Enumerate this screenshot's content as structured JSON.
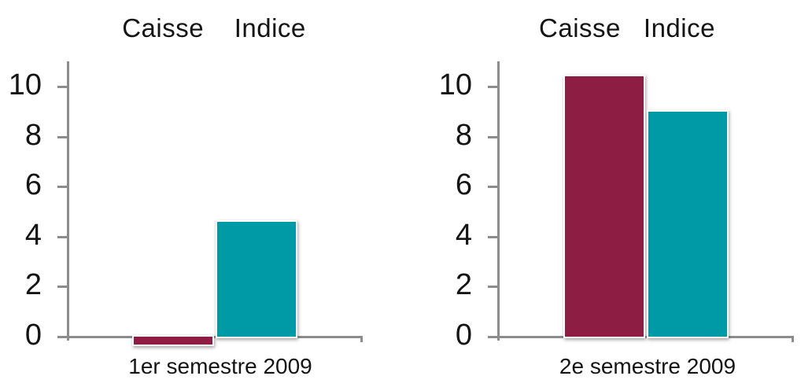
{
  "chart_data": [
    {
      "type": "bar",
      "title": "Caisse    Indice",
      "categories": [
        "1er semestre 2009"
      ],
      "series": [
        {
          "name": "Caisse",
          "color": "#8E1D43",
          "values": [
            -0.3
          ]
        },
        {
          "name": "Indice",
          "color": "#0099A6",
          "values": [
            4.6
          ]
        }
      ],
      "ylim": [
        0,
        10
      ],
      "yticks": [
        0,
        2,
        4,
        6,
        8,
        10
      ],
      "axis_color": "#8C8C8C",
      "text_color": "#141414",
      "grid": false,
      "legend_position": "none"
    },
    {
      "type": "bar",
      "title": "Caisse   Indice",
      "categories": [
        "2e semestre 2009"
      ],
      "series": [
        {
          "name": "Caisse",
          "color": "#8E1D43",
          "values": [
            10.4
          ]
        },
        {
          "name": "Indice",
          "color": "#0099A6",
          "values": [
            9.0
          ]
        }
      ],
      "ylim": [
        0,
        10
      ],
      "yticks": [
        0,
        2,
        4,
        6,
        8,
        10
      ],
      "axis_color": "#8C8C8C",
      "text_color": "#141414",
      "grid": false,
      "legend_position": "none"
    }
  ]
}
